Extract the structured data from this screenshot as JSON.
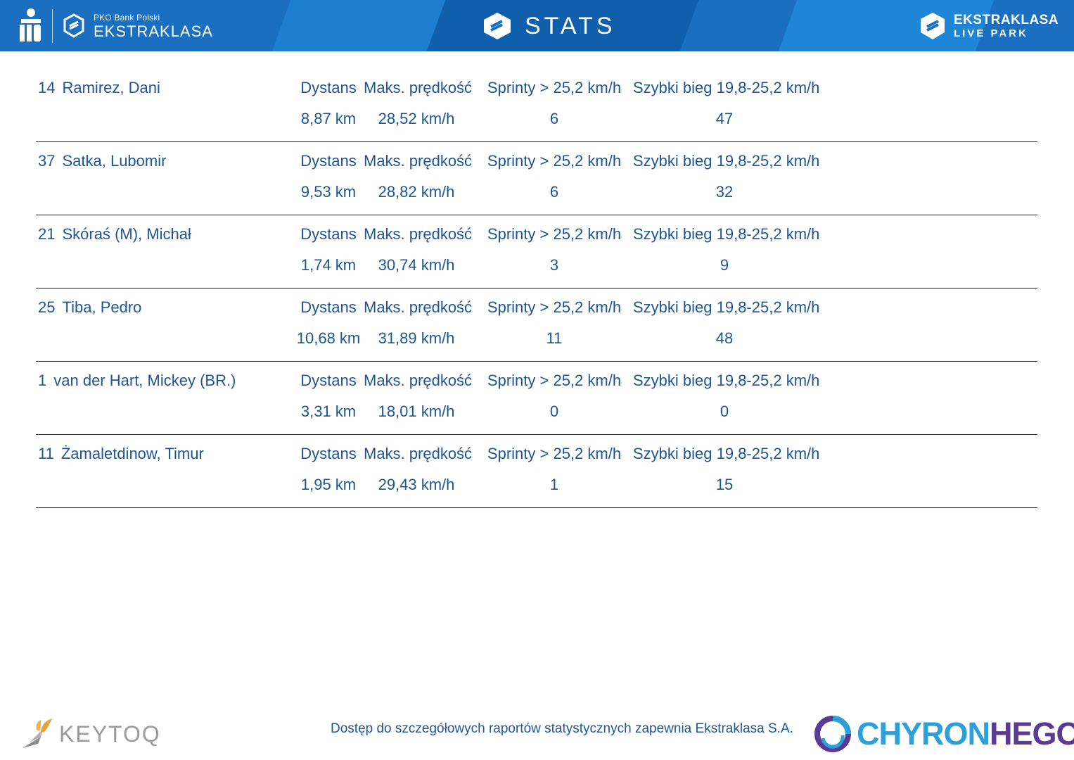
{
  "header": {
    "sponsor_small": "PKO Bank Polski",
    "sponsor_big": "EKSTRAKLASA",
    "center_title": "STATS",
    "right_line1": "EKSTRAKLASA",
    "right_line2": "LIVE PARK",
    "colors": {
      "bar": "#1a6fc0",
      "band_light": "#1f85d6",
      "band_dark": "#0f5fad",
      "text": "#1d5596"
    }
  },
  "columns": {
    "distance": "Dystans",
    "max_speed": "Maks. prędkość",
    "sprints": "Sprinty > 25,2 km/h",
    "fast_runs": "Szybki bieg 19,8-25,2 km/h"
  },
  "players": [
    {
      "number": "14",
      "name": "Ramirez, Dani",
      "distance": "8,87 km",
      "max_speed": "28,52 km/h",
      "sprints": "6",
      "fast_runs": "47"
    },
    {
      "number": "37",
      "name": "Satka, Lubomir",
      "distance": "9,53 km",
      "max_speed": "28,82 km/h",
      "sprints": "6",
      "fast_runs": "32"
    },
    {
      "number": "21",
      "name": "Skóraś (M), Michał",
      "distance": "1,74 km",
      "max_speed": "30,74 km/h",
      "sprints": "3",
      "fast_runs": "9"
    },
    {
      "number": "25",
      "name": "Tiba, Pedro",
      "distance": "10,68 km",
      "max_speed": "31,89 km/h",
      "sprints": "11",
      "fast_runs": "48"
    },
    {
      "number": "1",
      "name": "van der Hart, Mickey (BR.)",
      "distance": "3,31 km",
      "max_speed": "18,01 km/h",
      "sprints": "0",
      "fast_runs": "0"
    },
    {
      "number": "11",
      "name": "Żamaletdinow, Timur",
      "distance": "1,95 km",
      "max_speed": "29,43 km/h",
      "sprints": "1",
      "fast_runs": "15"
    }
  ],
  "footer": {
    "left_logo": "KEYTOQ",
    "note": "Dostęp do szczegółowych raportów statystycznych zapewnia Ekstraklasa S.A.",
    "right_logo_a": "CHYRON",
    "right_logo_b": "HEGO"
  },
  "icons": [
    "pko-logo-icon",
    "ekstraklasa-logo-icon",
    "stats-logo-icon",
    "live-park-logo-icon",
    "keytoq-logo-icon",
    "chyronhego-logo-icon"
  ]
}
